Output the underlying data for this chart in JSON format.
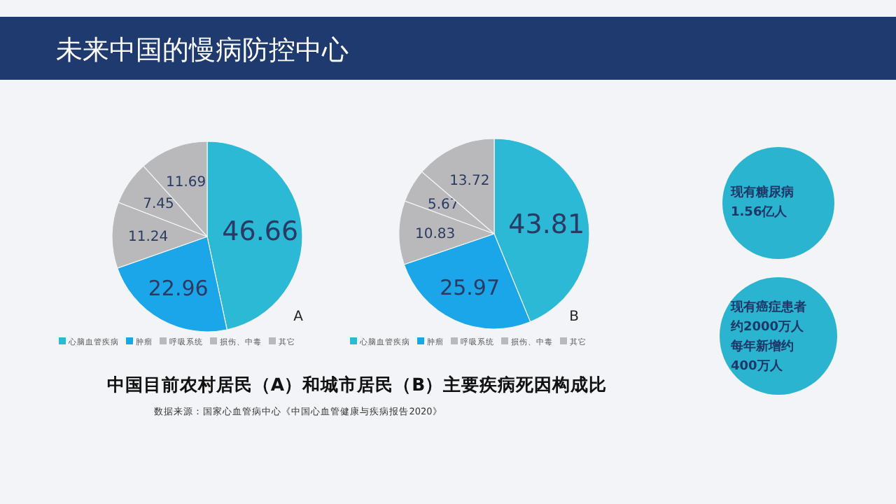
{
  "chart_data": [
    {
      "type": "pie",
      "subtitle": "A",
      "categories": [
        "心脑血管疾病",
        "肿瘤",
        "呼吸系统",
        "损伤、中毒",
        "其它"
      ],
      "values": [
        46.66,
        22.96,
        11.24,
        7.45,
        11.69
      ],
      "colors": [
        "#2bb9d6",
        "#1ba6ea",
        "#b9b9bb",
        "#b9b9bb",
        "#b9b9bb"
      ],
      "data_labels": true,
      "legend": "bottom"
    },
    {
      "type": "pie",
      "subtitle": "B",
      "categories": [
        "心脑血管疾病",
        "肿瘤",
        "呼吸系统",
        "损伤、中毒",
        "其它"
      ],
      "values": [
        43.81,
        25.97,
        10.83,
        5.67,
        13.72
      ],
      "colors": [
        "#2bb9d6",
        "#1ba6ea",
        "#b9b9bb",
        "#b9b9bb",
        "#b9b9bb"
      ],
      "data_labels": true,
      "legend": "bottom"
    },
    {
      "type": "other",
      "title": "未来中国的慢病防控中心",
      "annotations": [
        "中国目前农村居民（A）和城市居民（B）主要疾病死因构成比",
        "数据来源：国家心血管病中心《中国心血管健康与疾病报告2020》",
        "现有糖尿病",
        "1.56亿人",
        "现有癌症患者",
        "约2000万人",
        "每年新增约",
        "400万人"
      ]
    }
  ]
}
